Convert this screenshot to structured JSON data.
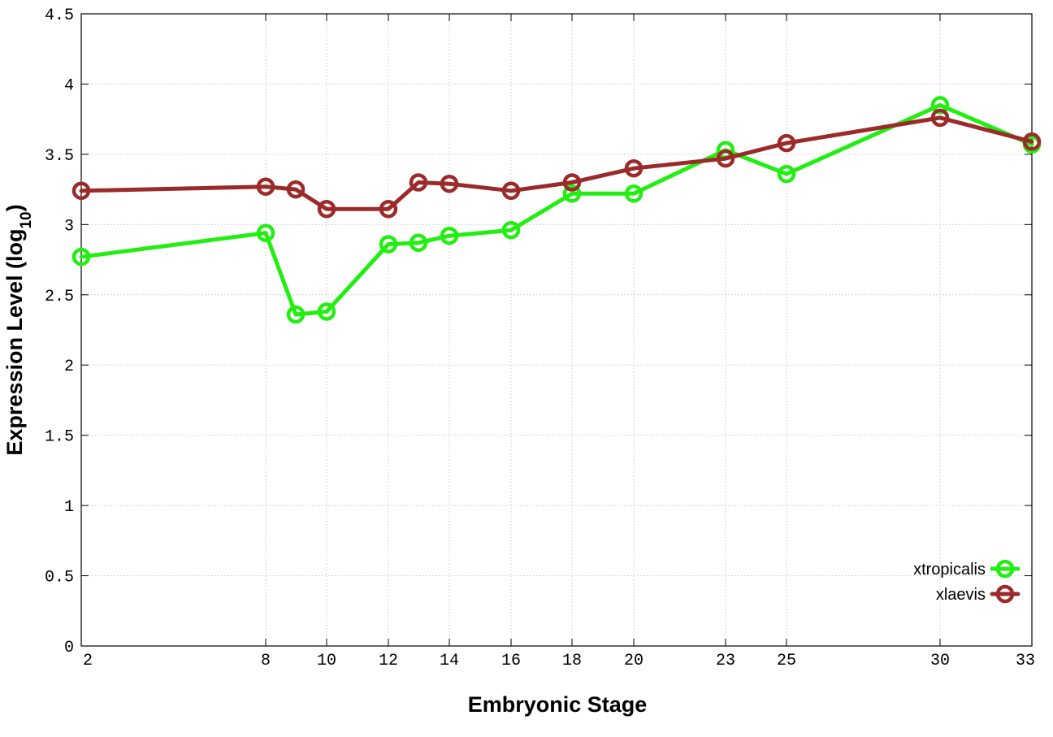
{
  "chart_data": {
    "type": "line",
    "xlabel": "Embryonic Stage",
    "ylabel_main": "Expression Level (log",
    "ylabel_sub": "10",
    "ylabel_close": ")",
    "x_scale": "categorical-uneven",
    "x_ticks": [
      2,
      8,
      10,
      12,
      14,
      16,
      18,
      20,
      23,
      25,
      30,
      33
    ],
    "x_tick_labels": [
      "2",
      "8",
      "10",
      "12",
      "14",
      "16",
      "18",
      "20",
      "23",
      "25",
      "30",
      "33"
    ],
    "xlim": [
      2,
      33
    ],
    "ylim": [
      0,
      4.5
    ],
    "y_ticks": [
      0,
      0.5,
      1,
      1.5,
      2,
      2.5,
      3,
      3.5,
      4,
      4.5
    ],
    "y_tick_labels": [
      "0",
      "0.5",
      "1",
      "1.5",
      "2",
      "2.5",
      "3",
      "3.5",
      "4",
      "4.5"
    ],
    "grid": true,
    "legend_position": "bottom-right",
    "series": [
      {
        "name": "xtropicalis",
        "color": "#22ee11",
        "x": [
          2,
          8,
          9,
          10,
          12,
          13,
          14,
          16,
          18,
          20,
          23,
          25,
          30,
          33
        ],
        "y": [
          2.77,
          2.94,
          2.36,
          2.38,
          2.86,
          2.87,
          2.92,
          2.96,
          3.22,
          3.22,
          3.53,
          3.36,
          3.85,
          3.57
        ]
      },
      {
        "name": "xlaevis",
        "color": "#9b2a2a",
        "x": [
          2,
          8,
          9,
          10,
          12,
          13,
          14,
          16,
          18,
          20,
          23,
          25,
          30,
          33
        ],
        "y": [
          3.24,
          3.27,
          3.25,
          3.11,
          3.11,
          3.3,
          3.29,
          3.24,
          3.3,
          3.4,
          3.47,
          3.58,
          3.76,
          3.59
        ]
      }
    ]
  }
}
